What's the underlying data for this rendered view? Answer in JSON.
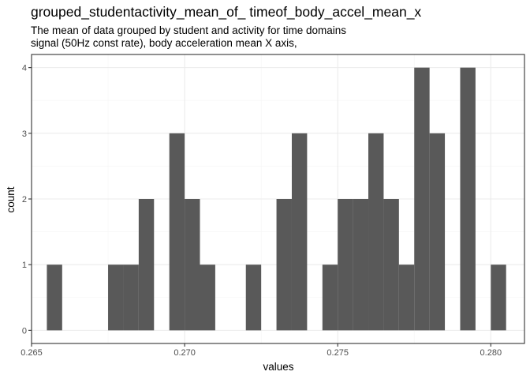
{
  "chart_data": {
    "type": "bar",
    "title": "grouped_studentactivity_mean_of_ timeof_body_accel_mean_x",
    "subtitle_lines": [
      "The mean of data grouped by student and activity for time domains",
      "signal (50Hz const rate), body acceleration mean X axis,"
    ],
    "xlabel": "values",
    "ylabel": "count",
    "xlim": [
      0.265,
      0.2811
    ],
    "ylim": [
      -0.2,
      4.2
    ],
    "x_ticks": [
      0.265,
      0.27,
      0.275,
      0.28
    ],
    "x_tick_labels": [
      "0.265",
      "0.270",
      "0.275",
      "0.280"
    ],
    "y_ticks": [
      0,
      1,
      2,
      3,
      4
    ],
    "y_tick_labels": [
      "0",
      "1",
      "2",
      "3",
      "4"
    ],
    "bin_width": 0.0005,
    "bins": [
      {
        "x0": 0.2655,
        "x1": 0.266,
        "count": 1
      },
      {
        "x0": 0.266,
        "x1": 0.2665,
        "count": 0
      },
      {
        "x0": 0.2665,
        "x1": 0.267,
        "count": 0
      },
      {
        "x0": 0.267,
        "x1": 0.2675,
        "count": 0
      },
      {
        "x0": 0.2675,
        "x1": 0.268,
        "count": 1
      },
      {
        "x0": 0.268,
        "x1": 0.2685,
        "count": 1
      },
      {
        "x0": 0.2685,
        "x1": 0.269,
        "count": 2
      },
      {
        "x0": 0.269,
        "x1": 0.2695,
        "count": 0
      },
      {
        "x0": 0.2695,
        "x1": 0.27,
        "count": 3
      },
      {
        "x0": 0.27,
        "x1": 0.2705,
        "count": 2
      },
      {
        "x0": 0.2705,
        "x1": 0.271,
        "count": 1
      },
      {
        "x0": 0.271,
        "x1": 0.2715,
        "count": 0
      },
      {
        "x0": 0.2715,
        "x1": 0.272,
        "count": 0
      },
      {
        "x0": 0.272,
        "x1": 0.2725,
        "count": 1
      },
      {
        "x0": 0.2725,
        "x1": 0.273,
        "count": 0
      },
      {
        "x0": 0.273,
        "x1": 0.2735,
        "count": 2
      },
      {
        "x0": 0.2735,
        "x1": 0.274,
        "count": 3
      },
      {
        "x0": 0.274,
        "x1": 0.2745,
        "count": 0
      },
      {
        "x0": 0.2745,
        "x1": 0.275,
        "count": 1
      },
      {
        "x0": 0.275,
        "x1": 0.2755,
        "count": 2
      },
      {
        "x0": 0.2755,
        "x1": 0.276,
        "count": 2
      },
      {
        "x0": 0.276,
        "x1": 0.2765,
        "count": 3
      },
      {
        "x0": 0.2765,
        "x1": 0.277,
        "count": 2
      },
      {
        "x0": 0.277,
        "x1": 0.2775,
        "count": 1
      },
      {
        "x0": 0.2775,
        "x1": 0.278,
        "count": 4
      },
      {
        "x0": 0.278,
        "x1": 0.2785,
        "count": 3
      },
      {
        "x0": 0.2785,
        "x1": 0.279,
        "count": 0
      },
      {
        "x0": 0.279,
        "x1": 0.2795,
        "count": 4
      },
      {
        "x0": 0.2795,
        "x1": 0.28,
        "count": 0
      },
      {
        "x0": 0.28,
        "x1": 0.2805,
        "count": 1
      }
    ],
    "bar_color": "#595959",
    "panel_background": "#ffffff",
    "grid_major_color": "#ebebeb",
    "grid_minor_color": "#f5f5f5",
    "panel_border_color": "#333333",
    "grid": true
  }
}
